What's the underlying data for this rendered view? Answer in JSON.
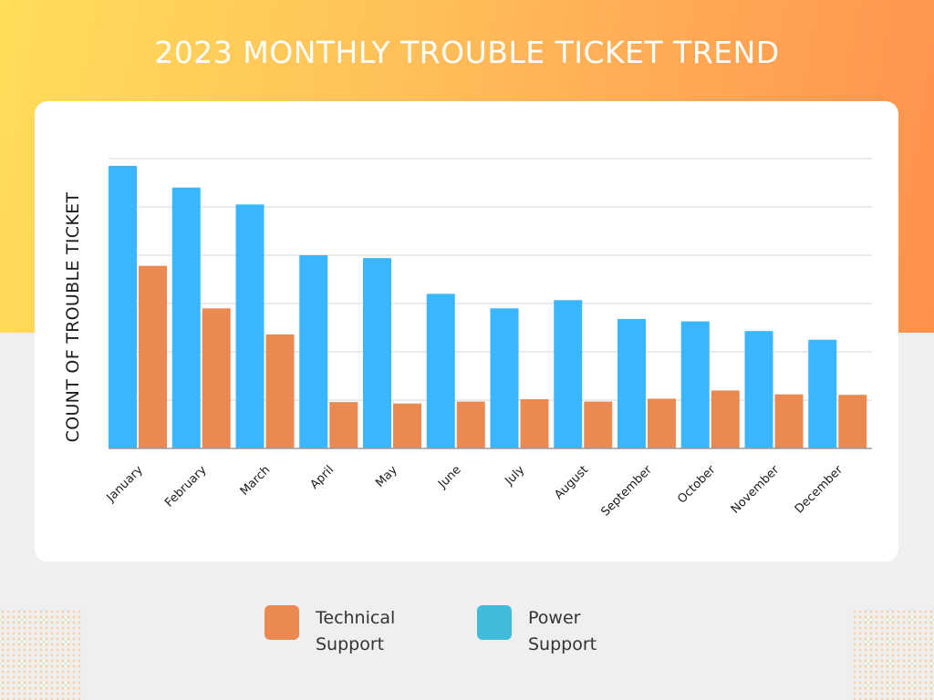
{
  "title": "2023 MONTHLY TROUBLE TICKET TREND",
  "colors": {
    "technical": "#ea8a52",
    "power": "#38b6ff",
    "power_legend": "#40bbd9",
    "grid": "#d4d4d4"
  },
  "legend": {
    "technical": "Technical Support",
    "power": "Power Support"
  },
  "chart_data": {
    "type": "bar",
    "title": "2023 MONTHLY TROUBLE TICKET TREND",
    "xlabel": "",
    "ylabel": "COUNT OF TROUBLE TICKET",
    "ylim": [
      0,
      60
    ],
    "yticks_visible": false,
    "grid": true,
    "legend_position": "bottom",
    "categories": [
      "January",
      "February",
      "March",
      "April",
      "May",
      "June",
      "July",
      "August",
      "September",
      "October",
      "November",
      "December"
    ],
    "series": [
      {
        "name": "Power Support",
        "values": [
          58.5,
          54,
          50.5,
          40,
          39.4,
          32,
          29,
          30.7,
          26.8,
          26.3,
          24.3,
          22.5
        ]
      },
      {
        "name": "Technical Support",
        "values": [
          37.8,
          29,
          23.6,
          9.6,
          9.3,
          9.7,
          10.2,
          9.7,
          10.3,
          12,
          11.2,
          11.1
        ]
      }
    ]
  }
}
